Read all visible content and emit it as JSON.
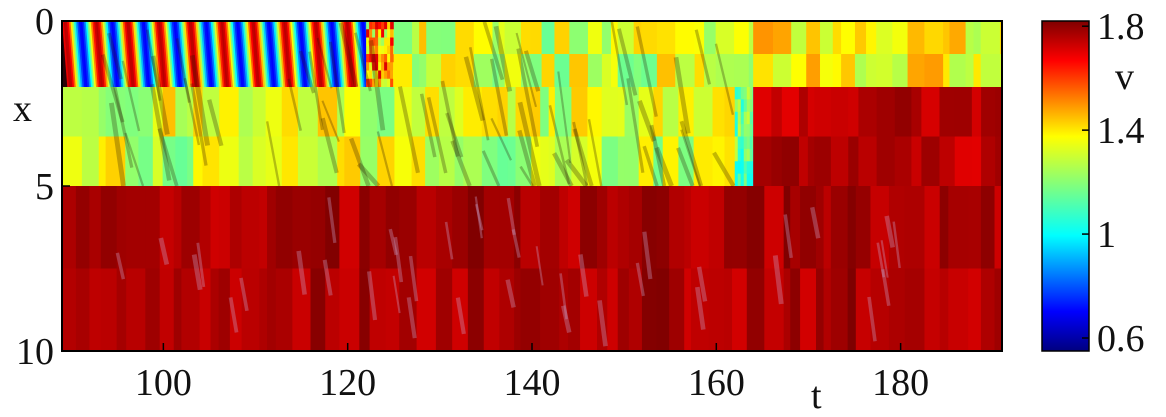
{
  "chart_data": {
    "type": "heatmap",
    "xlabel": "t",
    "ylabel": "x",
    "xlim": [
      89,
      191
    ],
    "ylim": [
      0,
      10
    ],
    "x_ticks": [
      100,
      120,
      140,
      160,
      180
    ],
    "y_ticks": [
      0,
      5,
      10
    ],
    "x_tick_labels": [
      "100",
      "120",
      "140",
      "160",
      "180"
    ],
    "y_tick_labels": [
      "0",
      "5",
      "10"
    ],
    "colorbar": {
      "label": "v",
      "range": [
        0.55,
        1.82
      ],
      "ticks": [
        0.6,
        1,
        1.4,
        1.8
      ],
      "tick_labels": [
        "0.6",
        "1",
        "1.4",
        "1.8"
      ],
      "colormap": "jet"
    },
    "rows": [
      {
        "x_range": [
          0,
          2
        ],
        "segments": [
          {
            "t": [
              89,
              122
            ],
            "pattern": "diagonal-stripes",
            "v_min": 0.7,
            "v_max": 1.75
          },
          {
            "t": [
              122,
              125
            ],
            "pattern": "checkered",
            "v_min": 1.2,
            "v_max": 1.75
          },
          {
            "t": [
              125,
              164
            ],
            "pattern": "blocks",
            "v_min": 1.15,
            "v_max": 1.45
          },
          {
            "t": [
              164,
              191
            ],
            "pattern": "blocks",
            "v_min": 1.25,
            "v_max": 1.5
          }
        ]
      },
      {
        "x_range": [
          2,
          5
        ],
        "segments": [
          {
            "t": [
              89,
              162
            ],
            "pattern": "blocks",
            "v_min": 1.15,
            "v_max": 1.45
          },
          {
            "t": [
              162,
              164
            ],
            "pattern": "checkered",
            "v_min": 1.0,
            "v_max": 1.3
          },
          {
            "t": [
              164,
              191
            ],
            "pattern": "blocks",
            "v_min": 1.7,
            "v_max": 1.8
          }
        ]
      },
      {
        "x_range": [
          5,
          10
        ],
        "segments": [
          {
            "t": [
              89,
              191
            ],
            "pattern": "blocks",
            "v_min": 1.72,
            "v_max": 1.82
          }
        ]
      }
    ],
    "axis_breaks_x": [
      2,
      5
    ],
    "grid": false
  }
}
